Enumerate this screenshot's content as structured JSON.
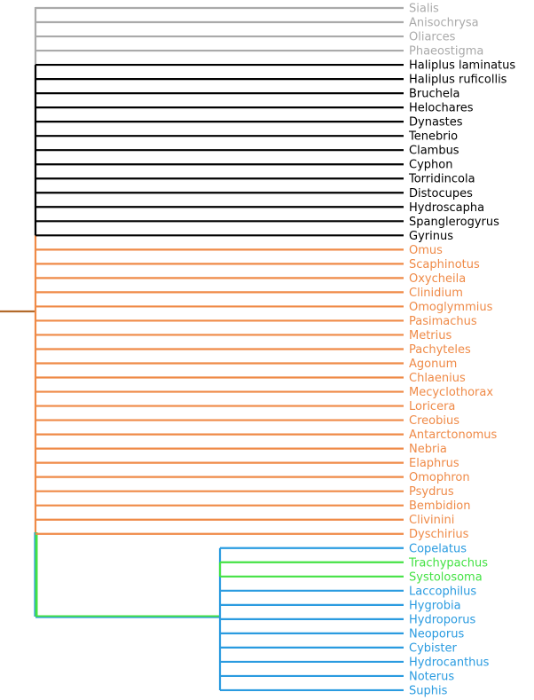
{
  "colors": {
    "outgroup": "#aaaaaa",
    "polyphaga": "#000000",
    "carabidae": "#ef8a47",
    "green": "#44e244",
    "blue": "#2a9be0",
    "root": "#b26a2a"
  },
  "taxa": [
    {
      "name": "Sialis",
      "group": "outgroup"
    },
    {
      "name": "Anisochrysa",
      "group": "outgroup"
    },
    {
      "name": "Oliarces",
      "group": "outgroup"
    },
    {
      "name": "Phaeostigma",
      "group": "outgroup"
    },
    {
      "name": "Haliplus laminatus",
      "group": "polyphaga"
    },
    {
      "name": "Haliplus ruficollis",
      "group": "polyphaga"
    },
    {
      "name": "Bruchela",
      "group": "polyphaga"
    },
    {
      "name": "Helochares",
      "group": "polyphaga"
    },
    {
      "name": "Dynastes",
      "group": "polyphaga"
    },
    {
      "name": "Tenebrio",
      "group": "polyphaga"
    },
    {
      "name": "Clambus",
      "group": "polyphaga"
    },
    {
      "name": "Cyphon",
      "group": "polyphaga"
    },
    {
      "name": "Torridincola",
      "group": "polyphaga"
    },
    {
      "name": "Distocupes",
      "group": "polyphaga"
    },
    {
      "name": "Hydroscapha",
      "group": "polyphaga"
    },
    {
      "name": "Spanglerogyrus",
      "group": "polyphaga"
    },
    {
      "name": "Gyrinus",
      "group": "polyphaga"
    },
    {
      "name": "Omus",
      "group": "carabidae"
    },
    {
      "name": "Scaphinotus",
      "group": "carabidae"
    },
    {
      "name": "Oxycheila",
      "group": "carabidae"
    },
    {
      "name": "Clinidium",
      "group": "carabidae"
    },
    {
      "name": "Omoglymmius",
      "group": "carabidae"
    },
    {
      "name": "Pasimachus",
      "group": "carabidae"
    },
    {
      "name": "Metrius",
      "group": "carabidae"
    },
    {
      "name": "Pachyteles",
      "group": "carabidae"
    },
    {
      "name": "Agonum",
      "group": "carabidae"
    },
    {
      "name": "Chlaenius",
      "group": "carabidae"
    },
    {
      "name": "Mecyclothorax",
      "group": "carabidae"
    },
    {
      "name": "Loricera",
      "group": "carabidae"
    },
    {
      "name": "Creobius",
      "group": "carabidae"
    },
    {
      "name": "Antarctonomus",
      "group": "carabidae"
    },
    {
      "name": "Nebria",
      "group": "carabidae"
    },
    {
      "name": "Elaphrus",
      "group": "carabidae"
    },
    {
      "name": "Omophron",
      "group": "carabidae"
    },
    {
      "name": "Psydrus",
      "group": "carabidae"
    },
    {
      "name": "Bembidion",
      "group": "carabidae"
    },
    {
      "name": "Clivinini",
      "group": "carabidae"
    },
    {
      "name": "Dyschirius",
      "group": "carabidae"
    },
    {
      "name": "Copelatus",
      "group": "blue"
    },
    {
      "name": "Trachypachus",
      "group": "green"
    },
    {
      "name": "Systolosoma",
      "group": "green"
    },
    {
      "name": "Laccophilus",
      "group": "blue"
    },
    {
      "name": "Hygrobia",
      "group": "blue"
    },
    {
      "name": "Hydroporus",
      "group": "blue"
    },
    {
      "name": "Neoporus",
      "group": "blue"
    },
    {
      "name": "Cybister",
      "group": "blue"
    },
    {
      "name": "Hydrocanthus",
      "group": "blue"
    },
    {
      "name": "Noterus",
      "group": "blue"
    },
    {
      "name": "Suphis",
      "group": "blue"
    }
  ]
}
